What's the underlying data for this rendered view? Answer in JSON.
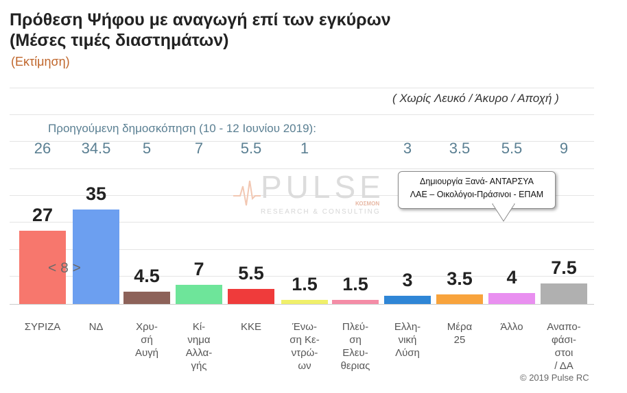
{
  "header": {
    "title_line1": "Πρόθεση Ψήφου με αναγωγή επί των εγκύρων",
    "title_line2": "(Μέσες τιμές διαστημάτων)",
    "subtitle": "(Εκτίμηση)"
  },
  "note_right": "( Χωρίς Λευκό / Άκυρο / Αποχή )",
  "previous_poll": {
    "title": "Προηγούμενη δημοσκόπηση (10 - 12 Ιουνίου 2019):",
    "values": [
      "26",
      "34.5",
      "5",
      "7",
      "5.5",
      "1",
      "",
      "3",
      "3.5",
      "5.5",
      "9"
    ]
  },
  "inner_annotation": "< 8 >",
  "callout": {
    "line1": "Δημιουργία Ξανά-  ΑΝΤΑΡΣΥΑ",
    "line2": "ΛΑΕ – Οικολόγοι-Πράσινοι - ΕΠΑΜ"
  },
  "watermark": {
    "brand": "PULSE",
    "sub": "RESEARCH & CONSULTING",
    "partner": "ΚΟΣΜΟΝ"
  },
  "copyright": "© 2019 Pulse RC",
  "colors": {
    "syriza": "#f7776d",
    "nd": "#6c9ff0",
    "xa": "#8d6259",
    "kinal": "#6ee59a",
    "kke": "#ef3b3b",
    "ek": "#f0f06a",
    "pe": "#f48ca6",
    "el": "#2f86d6",
    "mera25": "#f8a33c",
    "allo": "#e98ff0",
    "anapofasistoi": "#b0b0b0"
  },
  "chart_data": {
    "type": "bar",
    "title": "Πρόθεση Ψήφου με αναγωγή επί των εγκύρων",
    "subtitle": "(Μέσες τιμές διαστημάτων)",
    "categories": [
      "ΣΥΡΙΖΑ",
      "ΝΔ",
      "Χρυσή Αυγή",
      "Κίνημα Αλλαγής",
      "ΚΚΕ",
      "Ένωση Κεντρώων",
      "Πλεύση Ελευθερίας",
      "Ελληνική Λύση",
      "Μέρα 25",
      "Άλλο",
      "Αναποφάσιστοι / ΔΑ"
    ],
    "category_display": [
      [
        "ΣΥΡΙΖΑ"
      ],
      [
        "ΝΔ"
      ],
      [
        "Χρυ-",
        "σή",
        "Αυγή"
      ],
      [
        "Κί-",
        "νημα",
        "Αλλα-",
        "γής"
      ],
      [
        "ΚΚΕ"
      ],
      [
        "Ένω-",
        "ση Κε-",
        "ντρώ-",
        "ων"
      ],
      [
        "Πλεύ-",
        "ση",
        "Ελευ-",
        "θεριας"
      ],
      [
        "Ελλη-",
        "νική",
        "Λύση"
      ],
      [
        "Μέρα",
        "25"
      ],
      [
        "Άλλο"
      ],
      [
        "Αναπο-",
        "φάσι-",
        "στοι",
        "/ ΔΑ"
      ]
    ],
    "values": [
      27,
      35,
      4.5,
      7,
      5.5,
      1.5,
      1.5,
      3,
      3.5,
      4,
      7.5
    ],
    "value_labels": [
      "27",
      "35",
      "4.5",
      "7",
      "5.5",
      "1.5",
      "1.5",
      "3",
      "3.5",
      "4",
      "7.5"
    ],
    "previous_values": [
      26,
      34.5,
      5,
      7,
      5.5,
      1,
      null,
      3,
      3.5,
      5.5,
      9
    ],
    "color_keys": [
      "syriza",
      "nd",
      "xa",
      "kinal",
      "kke",
      "ek",
      "pe",
      "el",
      "mera25",
      "allo",
      "anapofasistoi"
    ],
    "ylim": [
      0,
      36
    ],
    "grid": true
  }
}
